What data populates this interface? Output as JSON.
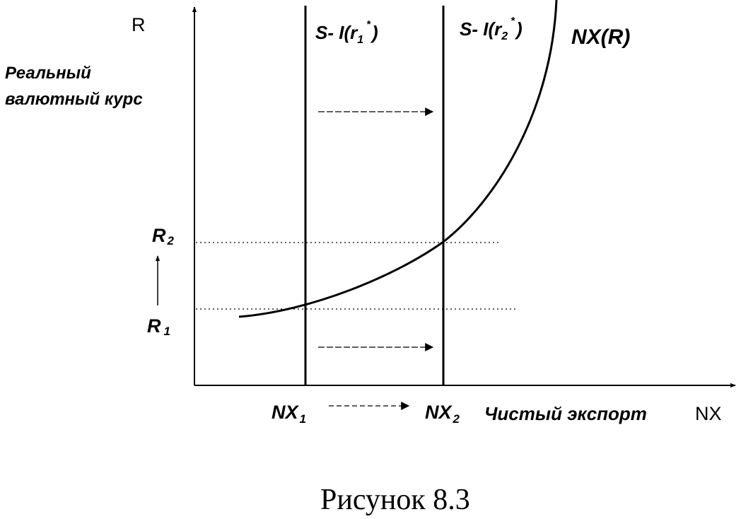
{
  "figure": {
    "caption": "Рисунок 8.3",
    "colors": {
      "ink": "#000000",
      "background": "#ffffff"
    },
    "axes": {
      "y_symbol": "R",
      "y_title_line1": "Реальный",
      "y_title_line2": "валютный курс",
      "x_symbol": "NX",
      "x_title": "Чистый экспорт"
    },
    "curve": {
      "label": "NX(R)"
    },
    "verticals": [
      {
        "label_main": "S- I(r",
        "label_sub": "1",
        "label_sup": "*",
        "label_close": ")"
      },
      {
        "label_main": "S- I(r",
        "label_sub": "2",
        "label_sup": "*",
        "label_close": ")"
      }
    ],
    "levels": {
      "r2_main": "R",
      "r2_sub": "2",
      "r1_main": "R",
      "r1_sub": "1"
    },
    "ticks": {
      "nx1_main": "NX",
      "nx1_sub": "1",
      "nx2_main": "NX",
      "nx2_sub": "2"
    }
  }
}
